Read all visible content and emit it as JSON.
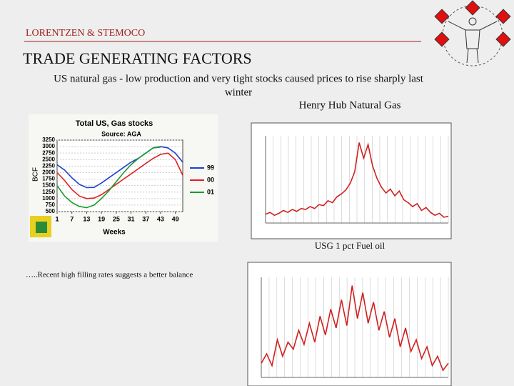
{
  "header": {
    "company": "LORENTZEN & STEMOCO",
    "title": "TRADE GENERATING FACTORS"
  },
  "text": {
    "subtitle_line1": "US natural gas - low production and very tight stocks caused prices to rise sharply last",
    "subtitle_line2": "winter",
    "caption_henry_hub": "Henry Hub Natural Gas",
    "caption_fuel_oil": "USG 1 pct Fuel oil",
    "note": "…..Recent high filling rates suggests a better balance"
  },
  "chart_data": [
    {
      "type": "line",
      "title": "Total US, Gas stocks",
      "subtitle": "Source: AGA",
      "y_label": "BCF",
      "x_label": "Weeks",
      "x": [
        1,
        4,
        7,
        10,
        13,
        16,
        19,
        22,
        25,
        28,
        31,
        34,
        37,
        40,
        43,
        46,
        49,
        52
      ],
      "xlim": [
        1,
        52
      ],
      "xticks": [
        1,
        7,
        13,
        19,
        25,
        31,
        37,
        43,
        49
      ],
      "ylim": [
        500,
        3250
      ],
      "yticks": [
        500,
        750,
        1000,
        1250,
        1500,
        1750,
        2000,
        2250,
        2500,
        2750,
        3000,
        3250
      ],
      "grid": true,
      "series": [
        {
          "name": "99",
          "color": "#1c3fd0",
          "values": [
            2300,
            2100,
            1800,
            1550,
            1420,
            1430,
            1600,
            1800,
            2000,
            2200,
            2400,
            2550,
            2750,
            2950,
            3000,
            2950,
            2750,
            2400
          ]
        },
        {
          "name": "00",
          "color": "#e02020",
          "values": [
            2000,
            1700,
            1350,
            1100,
            1000,
            1020,
            1150,
            1350,
            1550,
            1750,
            1950,
            2150,
            2350,
            2550,
            2700,
            2750,
            2500,
            1900
          ]
        },
        {
          "name": "01",
          "color": "#1a9a2a",
          "values": [
            1500,
            1100,
            850,
            700,
            650,
            750,
            1000,
            1300,
            1650,
            2000,
            2300,
            2550,
            2750,
            2950,
            2980,
            null,
            null,
            null
          ]
        }
      ]
    },
    {
      "type": "line",
      "ylim": [
        1.5,
        10.5
      ],
      "color": "#d02020",
      "values": [
        2.4,
        2.6,
        2.3,
        2.5,
        2.8,
        2.6,
        2.9,
        2.7,
        3.0,
        2.9,
        3.2,
        3.0,
        3.4,
        3.3,
        3.8,
        3.6,
        4.2,
        4.5,
        4.9,
        5.6,
        6.8,
        9.8,
        8.2,
        9.6,
        7.4,
        6.1,
        5.2,
        4.6,
        5.0,
        4.3,
        4.8,
        3.9,
        3.6,
        3.2,
        3.5,
        2.8,
        3.1,
        2.6,
        2.3,
        2.5,
        2.1,
        2.2
      ]
    },
    {
      "type": "line",
      "ylim": [
        2,
        10.5
      ],
      "color": "#d02020",
      "values": [
        3.2,
        4.0,
        3.0,
        5.2,
        3.8,
        5.0,
        4.4,
        6.0,
        4.8,
        6.6,
        5.0,
        7.2,
        5.6,
        7.8,
        6.2,
        8.6,
        6.4,
        9.8,
        7.0,
        9.2,
        6.6,
        8.4,
        6.0,
        7.6,
        5.4,
        7.0,
        4.6,
        6.2,
        4.2,
        5.2,
        3.6,
        4.6,
        3.0,
        3.8,
        2.6,
        3.2
      ]
    }
  ]
}
